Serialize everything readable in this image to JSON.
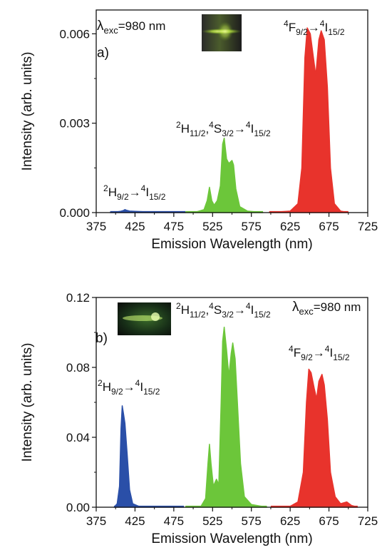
{
  "chart_data": [
    {
      "type": "area",
      "panel_label": "a)",
      "xlabel": "Emission Wavelength (nm)",
      "ylabel": "Intensity (arb. units)",
      "xlim": [
        375,
        725
      ],
      "ylim": [
        0,
        0.0068
      ],
      "xticks": [
        375,
        425,
        475,
        525,
        575,
        625,
        675,
        725
      ],
      "yticks": [
        0.0,
        0.003,
        0.006
      ],
      "ytick_labels": [
        "0.000",
        "0.003",
        "0.006"
      ],
      "grid": false,
      "excitation": {
        "lambda": "λ",
        "sub": "exc",
        "rest": "=980 nm"
      },
      "photo_inset": "fiber-glow-photo",
      "series": [
        {
          "color": "#2a4fa8",
          "annotation": {
            "parts": [
              [
                "2",
                "sup"
              ],
              [
                "H",
                ""
              ],
              [
                "9/2",
                "sub"
              ],
              [
                "→",
                ""
              ],
              [
                "4",
                "sup"
              ],
              [
                "I",
                ""
              ],
              [
                "15/2",
                "sub"
              ]
            ]
          },
          "points": [
            [
              393,
              0
            ],
            [
              400,
              2e-05
            ],
            [
              406,
              4e-05
            ],
            [
              410,
              7e-05
            ],
            [
              412,
              0.0001
            ],
            [
              414,
              8e-05
            ],
            [
              418,
              5e-05
            ],
            [
              425,
              4e-05
            ],
            [
              435,
              3e-05
            ],
            [
              450,
              2e-05
            ],
            [
              470,
              1e-05
            ],
            [
              490,
              0
            ]
          ]
        },
        {
          "color": "#6cc63a",
          "annotation": {
            "parts": [
              [
                "2",
                "sup"
              ],
              [
                "H",
                ""
              ],
              [
                "11/2",
                "sub"
              ],
              [
                ",",
                ""
              ],
              [
                "4",
                "sup"
              ],
              [
                "S",
                ""
              ],
              [
                "3/2",
                "sub"
              ],
              [
                "→",
                ""
              ],
              [
                "4",
                "sup"
              ],
              [
                "I",
                ""
              ],
              [
                "15/2",
                "sub"
              ]
            ]
          },
          "points": [
            [
              490,
              0
            ],
            [
              505,
              3e-05
            ],
            [
              514,
              0.0001
            ],
            [
              518,
              0.0004
            ],
            [
              521,
              0.00085
            ],
            [
              524,
              0.0004
            ],
            [
              527,
              0.00025
            ],
            [
              531,
              0.0004
            ],
            [
              535,
              0.0009
            ],
            [
              538,
              0.0023
            ],
            [
              540,
              0.0025
            ],
            [
              543,
              0.0018
            ],
            [
              546,
              0.00165
            ],
            [
              548,
              0.0017
            ],
            [
              550,
              0.00175
            ],
            [
              552,
              0.0016
            ],
            [
              555,
              0.0008
            ],
            [
              560,
              0.0002
            ],
            [
              570,
              5e-05
            ],
            [
              590,
              0
            ]
          ]
        },
        {
          "color": "#e8332c",
          "annotation": {
            "parts": [
              [
                "4",
                "sup"
              ],
              [
                "F",
                ""
              ],
              [
                "9/2",
                "sub"
              ],
              [
                "→",
                ""
              ],
              [
                "4",
                "sup"
              ],
              [
                "I",
                ""
              ],
              [
                "15/2",
                "sub"
              ]
            ]
          },
          "points": [
            [
              598,
              0
            ],
            [
              625,
              5e-05
            ],
            [
              635,
              0.0003
            ],
            [
              640,
              0.0015
            ],
            [
              644,
              0.0052
            ],
            [
              647,
              0.0062
            ],
            [
              651,
              0.006
            ],
            [
              655,
              0.0052
            ],
            [
              658,
              0.0046
            ],
            [
              662,
              0.0058
            ],
            [
              665,
              0.0061
            ],
            [
              669,
              0.0058
            ],
            [
              673,
              0.0042
            ],
            [
              677,
              0.0015
            ],
            [
              682,
              0.0003
            ],
            [
              690,
              5e-05
            ],
            [
              700,
              0
            ]
          ]
        }
      ]
    },
    {
      "type": "area",
      "panel_label": "b)",
      "xlabel": "Emission Wavelength (nm)",
      "ylabel": "Intensity (arb. units)",
      "xlim": [
        375,
        725
      ],
      "ylim": [
        0,
        0.12
      ],
      "xticks": [
        375,
        425,
        475,
        525,
        575,
        625,
        675,
        725
      ],
      "yticks": [
        0.0,
        0.04,
        0.08,
        0.12
      ],
      "ytick_labels": [
        "0.00",
        "0.04",
        "0.08",
        "0.12"
      ],
      "grid": false,
      "excitation": {
        "lambda": "λ",
        "sub": "exc",
        "rest": "=980 nm"
      },
      "photo_inset": "fiber-glow-photo",
      "series": [
        {
          "color": "#2a4fa8",
          "annotation": {
            "parts": [
              [
                "2",
                "sup"
              ],
              [
                "H",
                ""
              ],
              [
                "9/2",
                "sub"
              ],
              [
                "→",
                ""
              ],
              [
                "4",
                "sup"
              ],
              [
                "I",
                ""
              ],
              [
                "15/2",
                "sub"
              ]
            ]
          },
          "points": [
            [
              398,
              0
            ],
            [
              402,
              0.002
            ],
            [
              405,
              0.012
            ],
            [
              407,
              0.045
            ],
            [
              408.5,
              0.058
            ],
            [
              410,
              0.054
            ],
            [
              412,
              0.048
            ],
            [
              415,
              0.03
            ],
            [
              418,
              0.01
            ],
            [
              422,
              0.002
            ],
            [
              430,
              0.0005
            ],
            [
              450,
              0.0003
            ],
            [
              470,
              0.0002
            ],
            [
              488,
              0
            ]
          ]
        },
        {
          "color": "#6cc63a",
          "annotation": {
            "parts": [
              [
                "2",
                "sup"
              ],
              [
                "H",
                ""
              ],
              [
                "11/2",
                "sub"
              ],
              [
                ",",
                ""
              ],
              [
                "4",
                "sup"
              ],
              [
                "S",
                ""
              ],
              [
                "3/2",
                "sub"
              ],
              [
                "→",
                ""
              ],
              [
                "4",
                "sup"
              ],
              [
                "I",
                ""
              ],
              [
                "15/2",
                "sub"
              ]
            ]
          },
          "points": [
            [
              490,
              0
            ],
            [
              510,
              0.0005
            ],
            [
              516,
              0.005
            ],
            [
              519,
              0.025
            ],
            [
              521,
              0.036
            ],
            [
              523,
              0.025
            ],
            [
              526,
              0.012
            ],
            [
              530,
              0.016
            ],
            [
              533,
              0.013
            ],
            [
              536,
              0.06
            ],
            [
              538,
              0.095
            ],
            [
              540,
              0.103
            ],
            [
              543,
              0.09
            ],
            [
              546,
              0.075
            ],
            [
              549,
              0.088
            ],
            [
              551,
              0.094
            ],
            [
              554,
              0.085
            ],
            [
              557,
              0.06
            ],
            [
              561,
              0.025
            ],
            [
              566,
              0.006
            ],
            [
              575,
              0.0015
            ],
            [
              595,
              0
            ]
          ]
        },
        {
          "color": "#e8332c",
          "annotation": {
            "parts": [
              [
                "4",
                "sup"
              ],
              [
                "F",
                ""
              ],
              [
                "9/2",
                "sub"
              ],
              [
                "→",
                ""
              ],
              [
                "4",
                "sup"
              ],
              [
                "I",
                ""
              ],
              [
                "15/2",
                "sub"
              ]
            ]
          },
          "points": [
            [
              600,
              0
            ],
            [
              625,
              0.0005
            ],
            [
              635,
              0.003
            ],
            [
              642,
              0.02
            ],
            [
              646,
              0.06
            ],
            [
              649,
              0.079
            ],
            [
              652,
              0.077
            ],
            [
              656,
              0.068
            ],
            [
              659,
              0.062
            ],
            [
              662,
              0.072
            ],
            [
              666,
              0.076
            ],
            [
              669,
              0.07
            ],
            [
              673,
              0.05
            ],
            [
              677,
              0.02
            ],
            [
              683,
              0.006
            ],
            [
              690,
              0.002
            ],
            [
              698,
              0.003
            ],
            [
              704,
              0.001
            ],
            [
              712,
              0
            ]
          ]
        }
      ]
    }
  ]
}
